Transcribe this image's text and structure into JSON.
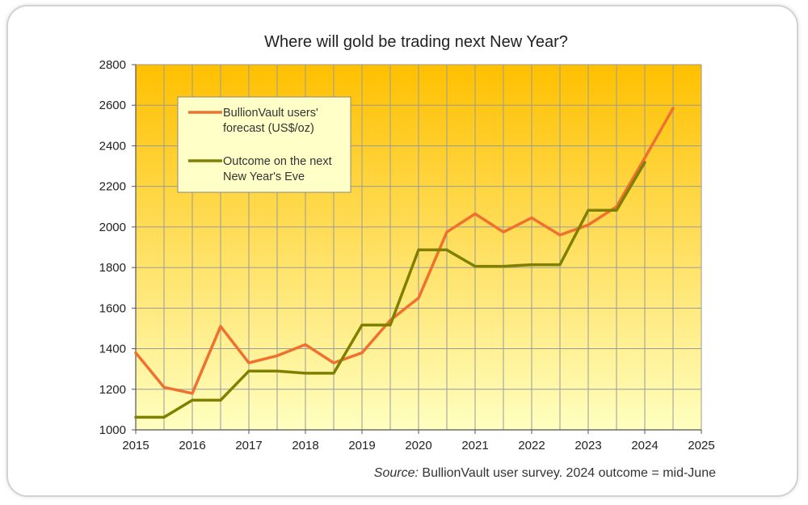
{
  "colors": {
    "forecast": "#f07030",
    "outcome": "#808000",
    "plot_top": "#ffc000",
    "plot_bottom": "#ffffc0",
    "grid": "#9a9a9a",
    "legend_bg": "#ffffc8"
  },
  "chart_data": {
    "type": "line",
    "title": "Where will gold be trading next New Year?",
    "xlabel": "",
    "ylabel": "",
    "xlim": [
      2015,
      2025
    ],
    "ylim": [
      1000,
      2800
    ],
    "x_ticks": [
      "2015",
      "2016",
      "2017",
      "2018",
      "2019",
      "2020",
      "2021",
      "2022",
      "2023",
      "2024",
      "2025"
    ],
    "y_ticks": [
      "1000",
      "1200",
      "1400",
      "1600",
      "1800",
      "2000",
      "2200",
      "2400",
      "2600",
      "2800"
    ],
    "grid": true,
    "legend_position": "top-left",
    "series": [
      {
        "name": "forecast",
        "label_line1": "BullionVault users'",
        "label_line2": "forecast (US$/oz)",
        "points": [
          [
            2015.0,
            1380
          ],
          [
            2015.5,
            1210
          ],
          [
            2016.0,
            1180
          ],
          [
            2016.5,
            1510
          ],
          [
            2017.0,
            1330
          ],
          [
            2017.5,
            1365
          ],
          [
            2018.0,
            1420
          ],
          [
            2018.5,
            1330
          ],
          [
            2019.0,
            1380
          ],
          [
            2019.5,
            1540
          ],
          [
            2020.0,
            1650
          ],
          [
            2020.5,
            1975
          ],
          [
            2021.0,
            2065
          ],
          [
            2021.5,
            1975
          ],
          [
            2022.0,
            2045
          ],
          [
            2022.5,
            1960
          ],
          [
            2023.0,
            2010
          ],
          [
            2023.5,
            2100
          ],
          [
            2024.0,
            2340
          ],
          [
            2024.5,
            2585
          ]
        ]
      },
      {
        "name": "outcome",
        "label_line1": "Outcome on the next",
        "label_line2": "New Year's Eve",
        "points": [
          [
            2015.0,
            1062
          ],
          [
            2015.5,
            1062
          ],
          [
            2016.0,
            1146
          ],
          [
            2016.5,
            1146
          ],
          [
            2017.0,
            1290
          ],
          [
            2017.5,
            1290
          ],
          [
            2018.0,
            1279
          ],
          [
            2018.5,
            1279
          ],
          [
            2019.0,
            1517
          ],
          [
            2019.5,
            1517
          ],
          [
            2020.0,
            1887
          ],
          [
            2020.5,
            1887
          ],
          [
            2021.0,
            1806
          ],
          [
            2021.5,
            1806
          ],
          [
            2022.0,
            1814
          ],
          [
            2022.5,
            1814
          ],
          [
            2023.0,
            2082
          ],
          [
            2023.5,
            2082
          ],
          [
            2024.0,
            2318
          ]
        ]
      }
    ],
    "source_label": "Source:",
    "source_text": "BullionVault user survey. 2024 outcome = mid-June"
  }
}
